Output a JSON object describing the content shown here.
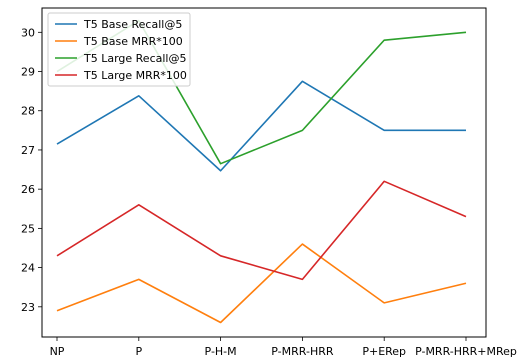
{
  "chart_data": {
    "type": "line",
    "title": "",
    "xlabel": "",
    "ylabel": "",
    "categories": [
      "NP",
      "P",
      "P-H-M",
      "P-MRR-HRR",
      "P+ERep",
      "P-MRR-HRR+MRep"
    ],
    "series": [
      {
        "name": "T5 Base Recall@5",
        "color": "#1f77b4",
        "values": [
          27.15,
          28.38,
          26.47,
          28.75,
          27.5,
          27.5
        ]
      },
      {
        "name": "T5 Base MRR*100",
        "color": "#ff7f0e",
        "values": [
          22.9,
          23.7,
          22.6,
          24.6,
          23.1,
          23.6
        ]
      },
      {
        "name": "T5 Large Recall@5",
        "color": "#2ca02c",
        "values": [
          29.0,
          30.3,
          26.65,
          27.5,
          29.8,
          30.0
        ]
      },
      {
        "name": "T5 Large MRR*100",
        "color": "#d62728",
        "values": [
          24.3,
          25.6,
          24.3,
          23.7,
          26.2,
          25.3
        ]
      }
    ],
    "yticks": [
      23,
      24,
      25,
      26,
      27,
      28,
      29,
      30
    ],
    "ylim": [
      22.23,
      30.62
    ],
    "grid": false,
    "legend": "top-left"
  }
}
